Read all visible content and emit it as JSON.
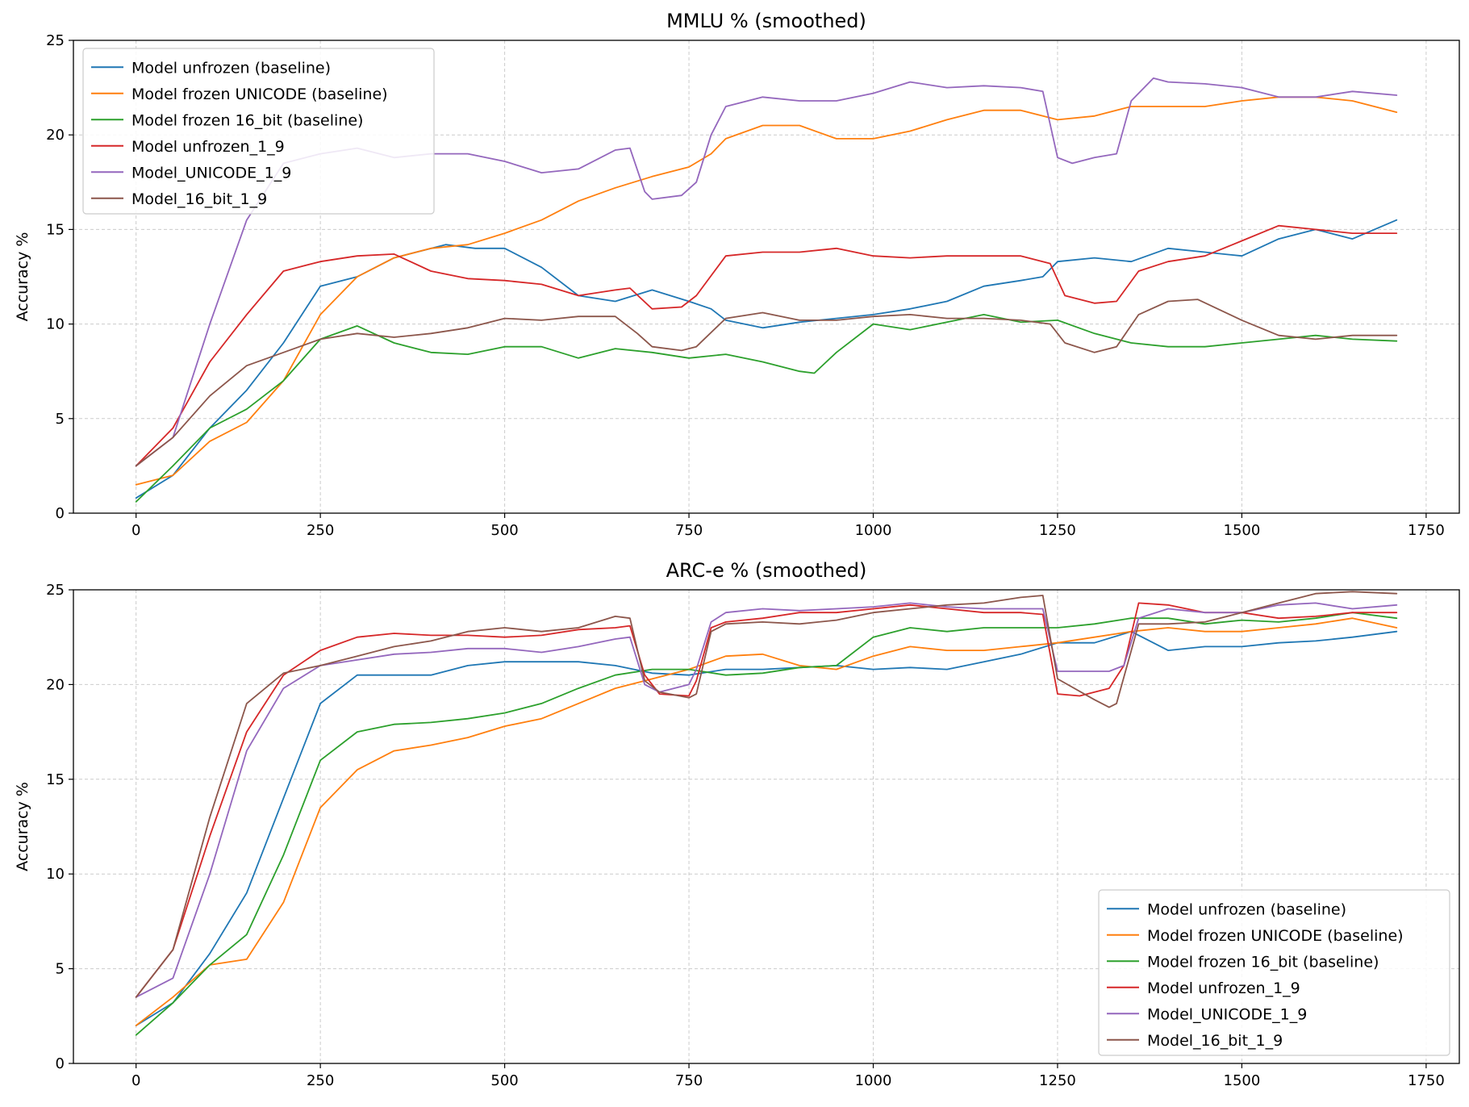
{
  "chart_data": [
    {
      "type": "line",
      "title": "MMLU % (smoothed)",
      "xlabel": "",
      "ylabel": "Accuracy %",
      "xlim": [
        -85,
        1795
      ],
      "ylim": [
        0,
        25
      ],
      "xticks": [
        0,
        250,
        500,
        750,
        1000,
        1250,
        1500,
        1750
      ],
      "yticks": [
        0,
        5,
        10,
        15,
        20,
        25
      ],
      "grid": true,
      "legend_position": "upper-left",
      "series": [
        {
          "name": "Model unfrozen (baseline)",
          "color": "#1f77b4",
          "x": [
            0,
            50,
            100,
            150,
            200,
            250,
            300,
            350,
            420,
            460,
            500,
            550,
            600,
            650,
            700,
            750,
            780,
            800,
            850,
            900,
            950,
            1000,
            1050,
            1100,
            1150,
            1200,
            1230,
            1250,
            1300,
            1350,
            1400,
            1450,
            1500,
            1550,
            1600,
            1650,
            1710
          ],
          "y": [
            0.8,
            2,
            4.5,
            6.5,
            9,
            12,
            12.5,
            13.5,
            14.2,
            14,
            14,
            13,
            11.5,
            11.2,
            11.8,
            11.2,
            10.8,
            10.2,
            9.8,
            10.1,
            10.3,
            10.5,
            10.8,
            11.2,
            12,
            12.3,
            12.5,
            13.3,
            13.5,
            13.3,
            14,
            13.8,
            13.6,
            14.5,
            15,
            14.5,
            15.5
          ]
        },
        {
          "name": "Model frozen UNICODE (baseline)",
          "color": "#ff7f0e",
          "x": [
            0,
            50,
            100,
            150,
            200,
            250,
            300,
            350,
            400,
            450,
            500,
            550,
            600,
            650,
            700,
            750,
            780,
            800,
            850,
            900,
            950,
            1000,
            1050,
            1100,
            1150,
            1200,
            1250,
            1300,
            1350,
            1400,
            1450,
            1500,
            1550,
            1600,
            1650,
            1710
          ],
          "y": [
            1.5,
            2,
            3.8,
            4.8,
            7,
            10.5,
            12.5,
            13.5,
            14,
            14.2,
            14.8,
            15.5,
            16.5,
            17.2,
            17.8,
            18.3,
            19,
            19.8,
            20.5,
            20.5,
            19.8,
            19.8,
            20.2,
            20.8,
            21.3,
            21.3,
            20.8,
            21,
            21.5,
            21.5,
            21.5,
            21.8,
            22,
            22,
            21.8,
            21.2
          ]
        },
        {
          "name": "Model frozen 16_bit (baseline)",
          "color": "#2ca02c",
          "x": [
            0,
            50,
            100,
            150,
            200,
            250,
            300,
            350,
            400,
            450,
            500,
            550,
            600,
            650,
            700,
            750,
            800,
            850,
            900,
            920,
            950,
            1000,
            1050,
            1100,
            1150,
            1200,
            1250,
            1300,
            1350,
            1400,
            1450,
            1500,
            1550,
            1600,
            1650,
            1710
          ],
          "y": [
            0.6,
            2.5,
            4.5,
            5.5,
            7,
            9.2,
            9.9,
            9,
            8.5,
            8.4,
            8.8,
            8.8,
            8.2,
            8.7,
            8.5,
            8.2,
            8.4,
            8,
            7.5,
            7.4,
            8.5,
            10,
            9.7,
            10.1,
            10.5,
            10.1,
            10.2,
            9.5,
            9,
            8.8,
            8.8,
            9,
            9.2,
            9.4,
            9.2,
            9.1
          ]
        },
        {
          "name": "Model unfrozen_1_9",
          "color": "#d62728",
          "x": [
            0,
            50,
            100,
            150,
            200,
            250,
            300,
            350,
            400,
            450,
            500,
            550,
            600,
            650,
            670,
            700,
            740,
            760,
            800,
            850,
            900,
            950,
            1000,
            1050,
            1100,
            1150,
            1200,
            1240,
            1260,
            1300,
            1330,
            1360,
            1400,
            1450,
            1500,
            1550,
            1600,
            1650,
            1710
          ],
          "y": [
            2.5,
            4.5,
            8,
            10.5,
            12.8,
            13.3,
            13.6,
            13.7,
            12.8,
            12.4,
            12.3,
            12.1,
            11.5,
            11.8,
            11.9,
            10.8,
            10.9,
            11.5,
            13.6,
            13.8,
            13.8,
            14,
            13.6,
            13.5,
            13.6,
            13.6,
            13.6,
            13.2,
            11.5,
            11.1,
            11.2,
            12.8,
            13.3,
            13.6,
            14.4,
            15.2,
            15,
            14.8,
            14.8
          ]
        },
        {
          "name": "Model_UNICODE_1_9",
          "color": "#9467bd",
          "x": [
            0,
            50,
            100,
            150,
            200,
            250,
            300,
            350,
            400,
            450,
            500,
            550,
            600,
            650,
            670,
            690,
            700,
            740,
            760,
            780,
            800,
            850,
            900,
            950,
            1000,
            1050,
            1100,
            1150,
            1200,
            1230,
            1250,
            1270,
            1300,
            1330,
            1350,
            1380,
            1400,
            1450,
            1500,
            1550,
            1600,
            1650,
            1710
          ],
          "y": [
            2.5,
            4,
            10,
            15.5,
            18.5,
            19,
            19.3,
            18.8,
            19,
            19,
            18.6,
            18,
            18.2,
            19.2,
            19.3,
            17,
            16.6,
            16.8,
            17.5,
            20,
            21.5,
            22,
            21.8,
            21.8,
            22.2,
            22.8,
            22.5,
            22.6,
            22.5,
            22.3,
            18.8,
            18.5,
            18.8,
            19,
            21.8,
            23,
            22.8,
            22.7,
            22.5,
            22,
            22,
            22.3,
            22.1
          ]
        },
        {
          "name": "Model_16_bit_1_9",
          "color": "#8c564b",
          "x": [
            0,
            50,
            100,
            150,
            200,
            250,
            300,
            350,
            400,
            450,
            500,
            550,
            600,
            650,
            680,
            700,
            740,
            760,
            800,
            850,
            900,
            950,
            1000,
            1050,
            1100,
            1150,
            1200,
            1240,
            1260,
            1300,
            1330,
            1360,
            1400,
            1440,
            1500,
            1550,
            1600,
            1650,
            1710
          ],
          "y": [
            2.5,
            4,
            6.2,
            7.8,
            8.5,
            9.2,
            9.5,
            9.3,
            9.5,
            9.8,
            10.3,
            10.2,
            10.4,
            10.4,
            9.5,
            8.8,
            8.6,
            8.8,
            10.3,
            10.6,
            10.2,
            10.2,
            10.4,
            10.5,
            10.3,
            10.3,
            10.2,
            10,
            9,
            8.5,
            8.8,
            10.5,
            11.2,
            11.3,
            10.2,
            9.4,
            9.2,
            9.4,
            9.4
          ]
        }
      ]
    },
    {
      "type": "line",
      "title": "ARC-e % (smoothed)",
      "xlabel": "",
      "ylabel": "Accuracy %",
      "xlim": [
        -85,
        1795
      ],
      "ylim": [
        0,
        25
      ],
      "xticks": [
        0,
        250,
        500,
        750,
        1000,
        1250,
        1500,
        1750
      ],
      "yticks": [
        0,
        5,
        10,
        15,
        20,
        25
      ],
      "grid": true,
      "legend_position": "lower-right",
      "series": [
        {
          "name": "Model unfrozen (baseline)",
          "color": "#1f77b4",
          "x": [
            0,
            50,
            100,
            150,
            200,
            250,
            300,
            350,
            400,
            450,
            500,
            550,
            600,
            650,
            700,
            750,
            800,
            850,
            900,
            950,
            1000,
            1050,
            1100,
            1150,
            1200,
            1250,
            1300,
            1350,
            1400,
            1450,
            1500,
            1550,
            1600,
            1650,
            1710
          ],
          "y": [
            2,
            3.2,
            5.8,
            9,
            14,
            19,
            20.5,
            20.5,
            20.5,
            21,
            21.2,
            21.2,
            21.2,
            21,
            20.6,
            20.5,
            20.8,
            20.8,
            20.9,
            21,
            20.8,
            20.9,
            20.8,
            21.2,
            21.6,
            22.2,
            22.2,
            22.8,
            21.8,
            22,
            22,
            22.2,
            22.3,
            22.5,
            22.8
          ]
        },
        {
          "name": "Model frozen UNICODE (baseline)",
          "color": "#ff7f0e",
          "x": [
            0,
            50,
            100,
            150,
            200,
            250,
            300,
            350,
            400,
            450,
            500,
            550,
            600,
            650,
            700,
            750,
            800,
            850,
            900,
            950,
            1000,
            1050,
            1100,
            1150,
            1200,
            1250,
            1300,
            1350,
            1400,
            1450,
            1500,
            1550,
            1600,
            1650,
            1710
          ],
          "y": [
            2,
            3.5,
            5.2,
            5.5,
            8.5,
            13.5,
            15.5,
            16.5,
            16.8,
            17.2,
            17.8,
            18.2,
            19,
            19.8,
            20.3,
            20.8,
            21.5,
            21.6,
            21,
            20.8,
            21.5,
            22,
            21.8,
            21.8,
            22,
            22.2,
            22.5,
            22.8,
            23,
            22.8,
            22.8,
            23,
            23.2,
            23.5,
            23
          ]
        },
        {
          "name": "Model frozen 16_bit (baseline)",
          "color": "#2ca02c",
          "x": [
            0,
            50,
            100,
            150,
            200,
            250,
            300,
            350,
            400,
            450,
            500,
            550,
            600,
            650,
            700,
            750,
            800,
            850,
            900,
            950,
            1000,
            1050,
            1100,
            1150,
            1200,
            1250,
            1300,
            1350,
            1400,
            1450,
            1500,
            1550,
            1600,
            1650,
            1710
          ],
          "y": [
            1.5,
            3.2,
            5.2,
            6.8,
            11,
            16,
            17.5,
            17.9,
            18,
            18.2,
            18.5,
            19,
            19.8,
            20.5,
            20.8,
            20.8,
            20.5,
            20.6,
            20.9,
            21,
            22.5,
            23,
            22.8,
            23,
            23,
            23,
            23.2,
            23.5,
            23.5,
            23.2,
            23.4,
            23.3,
            23.5,
            23.8,
            23.5
          ]
        },
        {
          "name": "Model unfrozen_1_9",
          "color": "#d62728",
          "x": [
            0,
            50,
            100,
            150,
            200,
            250,
            300,
            350,
            400,
            450,
            500,
            550,
            600,
            650,
            670,
            690,
            710,
            750,
            760,
            780,
            800,
            850,
            900,
            950,
            1000,
            1050,
            1100,
            1150,
            1200,
            1230,
            1250,
            1280,
            1320,
            1340,
            1360,
            1400,
            1450,
            1500,
            1550,
            1600,
            1650,
            1710
          ],
          "y": [
            3.5,
            6,
            12,
            17.5,
            20.5,
            21.8,
            22.5,
            22.7,
            22.6,
            22.6,
            22.5,
            22.6,
            22.9,
            23,
            23.1,
            20.5,
            19.5,
            19.4,
            20.2,
            23,
            23.3,
            23.5,
            23.8,
            23.8,
            24,
            24.2,
            24,
            23.8,
            23.8,
            23.7,
            19.5,
            19.4,
            19.8,
            21,
            24.3,
            24.2,
            23.8,
            23.8,
            23.5,
            23.6,
            23.8,
            23.8
          ]
        },
        {
          "name": "Model_UNICODE_1_9",
          "color": "#9467bd",
          "x": [
            0,
            50,
            100,
            150,
            200,
            250,
            300,
            350,
            400,
            450,
            500,
            550,
            600,
            650,
            670,
            690,
            710,
            750,
            760,
            780,
            800,
            850,
            900,
            950,
            1000,
            1050,
            1100,
            1150,
            1200,
            1230,
            1250,
            1280,
            1320,
            1340,
            1360,
            1400,
            1450,
            1500,
            1550,
            1600,
            1650,
            1710
          ],
          "y": [
            3.5,
            4.5,
            10,
            16.5,
            19.8,
            21,
            21.3,
            21.6,
            21.7,
            21.9,
            21.9,
            21.7,
            22,
            22.4,
            22.5,
            20,
            19.6,
            20,
            20.8,
            23.3,
            23.8,
            24,
            23.9,
            24,
            24.1,
            24.3,
            24.1,
            24,
            24,
            24,
            20.7,
            20.7,
            20.7,
            21,
            23.5,
            24,
            23.8,
            23.8,
            24.2,
            24.3,
            24,
            24.2
          ]
        },
        {
          "name": "Model_16_bit_1_9",
          "color": "#8c564b",
          "x": [
            0,
            50,
            100,
            150,
            200,
            250,
            300,
            350,
            400,
            450,
            500,
            550,
            600,
            650,
            670,
            690,
            710,
            750,
            760,
            780,
            800,
            850,
            900,
            950,
            1000,
            1050,
            1100,
            1150,
            1200,
            1230,
            1250,
            1300,
            1320,
            1330,
            1360,
            1400,
            1450,
            1500,
            1550,
            1600,
            1650,
            1710
          ],
          "y": [
            3.5,
            6,
            13,
            19,
            20.6,
            21,
            21.5,
            22,
            22.3,
            22.8,
            23,
            22.8,
            23,
            23.6,
            23.5,
            20.2,
            19.6,
            19.3,
            19.5,
            22.8,
            23.2,
            23.3,
            23.2,
            23.4,
            23.8,
            24,
            24.2,
            24.3,
            24.6,
            24.7,
            20.3,
            19.2,
            18.8,
            19,
            23.2,
            23.2,
            23.3,
            23.8,
            24.3,
            24.8,
            24.9,
            24.8
          ]
        }
      ]
    }
  ]
}
